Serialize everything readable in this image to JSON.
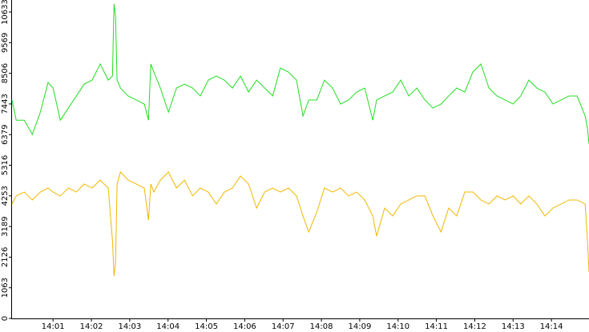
{
  "chart_data": {
    "type": "line",
    "x": [
      839.93,
      840.04,
      840.25,
      840.46,
      840.67,
      840.87,
      841.0,
      841.19,
      841.4,
      841.61,
      841.81,
      842.02,
      842.23,
      842.44,
      842.55,
      842.59,
      842.63,
      842.67,
      842.76,
      842.96,
      843.17,
      843.38,
      843.49,
      843.55,
      843.63,
      843.8,
      844.01,
      844.22,
      844.43,
      844.64,
      844.84,
      845.05,
      845.26,
      845.47,
      845.68,
      845.89,
      846.1,
      846.31,
      846.52,
      846.73,
      846.93,
      847.14,
      847.35,
      847.52,
      847.67,
      847.88,
      848.08,
      848.29,
      848.5,
      848.71,
      848.92,
      849.13,
      849.34,
      849.44,
      849.65,
      849.86,
      850.07,
      850.28,
      850.49,
      850.7,
      850.91,
      851.12,
      851.32,
      851.53,
      851.74,
      851.95,
      852.16,
      852.37,
      852.58,
      852.79,
      853.0,
      853.2,
      853.41,
      853.62,
      853.83,
      854.04,
      854.25,
      854.46,
      854.67,
      854.88,
      854.94,
      854.98
    ],
    "series": [
      {
        "color": "#22dd22",
        "values": [
          7580,
          6880,
          6880,
          6385,
          7160,
          8190,
          7995,
          6880,
          7300,
          7720,
          8130,
          8270,
          8830,
          8270,
          8410,
          10910,
          10490,
          8270,
          7995,
          7720,
          7580,
          7440,
          6880,
          8830,
          8550,
          7995,
          7160,
          7995,
          8130,
          7995,
          7720,
          8270,
          8410,
          8270,
          7995,
          8410,
          7855,
          8270,
          7995,
          7720,
          8690,
          8550,
          8270,
          7025,
          7580,
          7580,
          8270,
          7995,
          7440,
          7580,
          7855,
          7995,
          6880,
          7580,
          7720,
          7855,
          8270,
          7720,
          7995,
          7580,
          7300,
          7440,
          7720,
          7995,
          7855,
          8550,
          8830,
          7995,
          7720,
          7580,
          7440,
          7720,
          8270,
          7995,
          7855,
          7440,
          7580,
          7720,
          7720,
          7025,
          6605,
          6050
        ]
      },
      {
        "color": "#f0b800",
        "values": [
          3970,
          4250,
          4385,
          4110,
          4385,
          4525,
          4385,
          4250,
          4525,
          4385,
          4665,
          4525,
          4800,
          4525,
          2720,
          1470,
          1890,
          4665,
          5080,
          4800,
          4665,
          4525,
          3415,
          4665,
          4385,
          4800,
          5080,
          4525,
          4800,
          4250,
          4525,
          4385,
          3970,
          4385,
          4525,
          4940,
          4665,
          3830,
          4385,
          4525,
          4385,
          4525,
          4250,
          3555,
          3000,
          3690,
          4525,
          4385,
          4525,
          4250,
          4385,
          4110,
          3555,
          2860,
          3830,
          3555,
          3970,
          4110,
          4250,
          4250,
          3555,
          3000,
          3830,
          3555,
          4385,
          4385,
          4110,
          3970,
          4250,
          4110,
          4250,
          3970,
          4250,
          3970,
          3555,
          3830,
          3970,
          4110,
          4110,
          3970,
          2720,
          1610
        ]
      }
    ],
    "xlim": [
      839.93,
      854.98
    ],
    "xticks": [
      {
        "value": 841,
        "label": "14:01"
      },
      {
        "value": 842,
        "label": "14:02"
      },
      {
        "value": 843,
        "label": "14:03"
      },
      {
        "value": 844,
        "label": "14:04"
      },
      {
        "value": 845,
        "label": "14:05"
      },
      {
        "value": 846,
        "label": "14:06"
      },
      {
        "value": 847,
        "label": "14:07"
      },
      {
        "value": 848,
        "label": "14:08"
      },
      {
        "value": 849,
        "label": "14:09"
      },
      {
        "value": 850,
        "label": "14:10"
      },
      {
        "value": 851,
        "label": "14:11"
      },
      {
        "value": 852,
        "label": "14:12"
      },
      {
        "value": 853,
        "label": "14:13"
      },
      {
        "value": 854,
        "label": "14:14"
      }
    ],
    "ylim": [
      0,
      11050
    ],
    "yticks": [
      0,
      1063,
      2126,
      3189,
      4253,
      5316,
      6379,
      7443,
      8506,
      9569,
      10633
    ]
  }
}
